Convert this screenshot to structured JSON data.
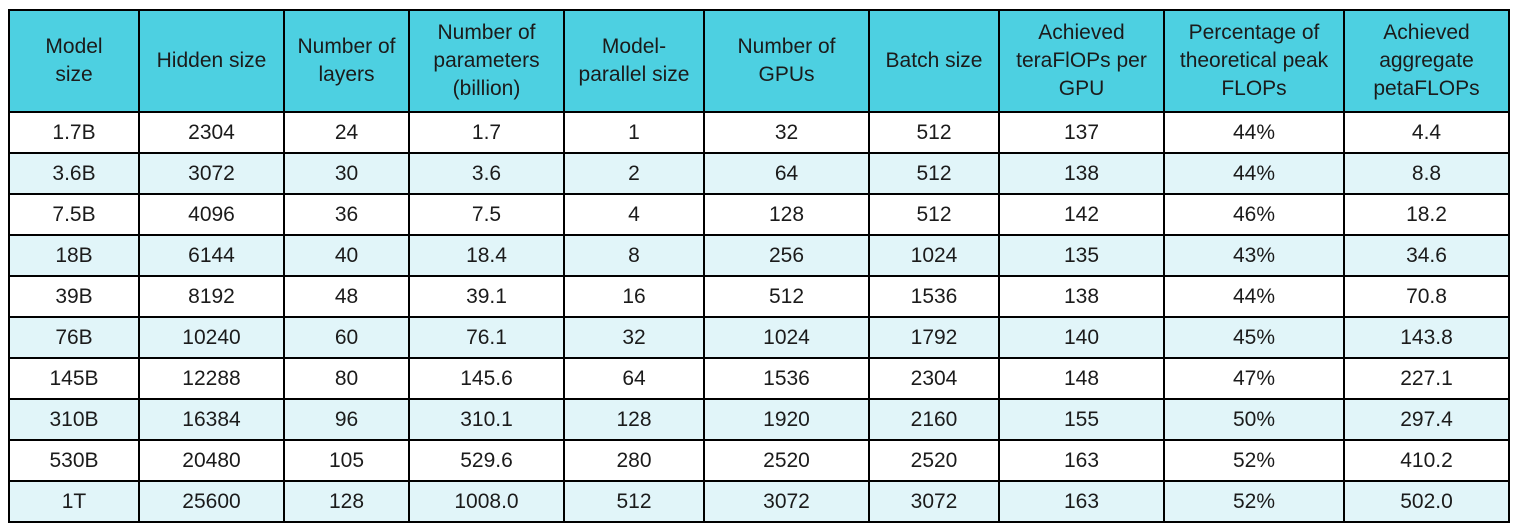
{
  "chart_data": {
    "type": "table",
    "columns": [
      "Model size",
      "Hidden size",
      "Number of layers",
      "Number of parameters (billion)",
      "Model-parallel size",
      "Number of GPUs",
      "Batch size",
      "Achieved teraFlOPs per GPU",
      "Percentage of theoretical peak FLOPs",
      "Achieved aggregate petaFLOPs"
    ],
    "rows": [
      [
        "1.7B",
        "2304",
        "24",
        "1.7",
        "1",
        "32",
        "512",
        "137",
        "44%",
        "4.4"
      ],
      [
        "3.6B",
        "3072",
        "30",
        "3.6",
        "2",
        "64",
        "512",
        "138",
        "44%",
        "8.8"
      ],
      [
        "7.5B",
        "4096",
        "36",
        "7.5",
        "4",
        "128",
        "512",
        "142",
        "46%",
        "18.2"
      ],
      [
        "18B",
        "6144",
        "40",
        "18.4",
        "8",
        "256",
        "1024",
        "135",
        "43%",
        "34.6"
      ],
      [
        "39B",
        "8192",
        "48",
        "39.1",
        "16",
        "512",
        "1536",
        "138",
        "44%",
        "70.8"
      ],
      [
        "76B",
        "10240",
        "60",
        "76.1",
        "32",
        "1024",
        "1792",
        "140",
        "45%",
        "143.8"
      ],
      [
        "145B",
        "12288",
        "80",
        "145.6",
        "64",
        "1536",
        "2304",
        "148",
        "47%",
        "227.1"
      ],
      [
        "310B",
        "16384",
        "96",
        "310.1",
        "128",
        "1920",
        "2160",
        "155",
        "50%",
        "297.4"
      ],
      [
        "530B",
        "20480",
        "105",
        "529.6",
        "280",
        "2520",
        "2520",
        "163",
        "52%",
        "410.2"
      ],
      [
        "1T",
        "25600",
        "128",
        "1008.0",
        "512",
        "3072",
        "3072",
        "163",
        "52%",
        "502.0"
      ]
    ]
  },
  "colors": {
    "header_bg": "#4dd0e1",
    "row_even_bg": "#ffffff",
    "row_odd_bg": "#e1f5f9",
    "border": "#000000",
    "text": "#1b1b1b"
  }
}
